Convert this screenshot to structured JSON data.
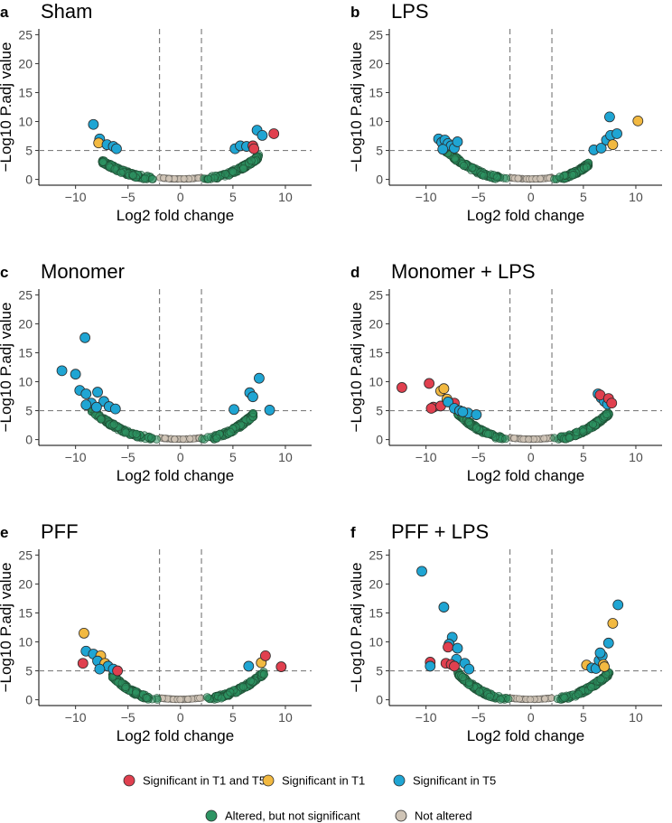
{
  "chart_data": {
    "type": "scatter",
    "xlabel": "Log2 fold change",
    "ylabel": "−Log10 P.adj value",
    "xlim": [
      -13.5,
      12.5
    ],
    "ylim": [
      -1,
      26
    ],
    "xticks": [
      -10,
      -5,
      0,
      5,
      10
    ],
    "xtick_labels": [
      "−10",
      "−5",
      "0",
      "5",
      "10"
    ],
    "yticks": [
      0,
      5,
      10,
      15,
      20,
      25
    ],
    "ytick_labels": [
      "0",
      "5",
      "10",
      "15",
      "20",
      "25"
    ],
    "thresholds": {
      "x": [
        -2,
        2
      ],
      "y": 5
    },
    "categories": {
      "t1t5": {
        "label": "Significant in T1 and T5",
        "color": "#e0404f"
      },
      "t1": {
        "label": "Significant in T1",
        "color": "#f2b941"
      },
      "t5": {
        "label": "Significant in T5",
        "color": "#1fa5d3"
      },
      "altered": {
        "label": "Altered, but not significant",
        "color": "#2e9463"
      },
      "not": {
        "label": "Not altered",
        "color": "#cfc4b6"
      }
    },
    "panels": [
      {
        "letter": "a",
        "title": "Sham",
        "left": {
          "xmin": -7.5,
          "xmax": -2,
          "ymax": 3
        },
        "right": {
          "xmin": 2,
          "xmax": 7.5,
          "ymax": 3.8
        },
        "sig": [
          {
            "x": -8.3,
            "y": 9.5,
            "c": "t5"
          },
          {
            "x": -7.7,
            "y": 7.0,
            "c": "t5"
          },
          {
            "x": -7.8,
            "y": 6.3,
            "c": "t1"
          },
          {
            "x": -7.0,
            "y": 6.0,
            "c": "t5"
          },
          {
            "x": -6.4,
            "y": 5.7,
            "c": "t5"
          },
          {
            "x": -6.1,
            "y": 5.3,
            "c": "t5"
          },
          {
            "x": 5.2,
            "y": 5.3,
            "c": "t5"
          },
          {
            "x": 5.7,
            "y": 5.8,
            "c": "t5"
          },
          {
            "x": 6.3,
            "y": 5.7,
            "c": "t5"
          },
          {
            "x": 6.9,
            "y": 5.8,
            "c": "t1t5"
          },
          {
            "x": 7.0,
            "y": 5.3,
            "c": "t1t5"
          },
          {
            "x": 7.3,
            "y": 8.5,
            "c": "t5"
          },
          {
            "x": 7.8,
            "y": 7.6,
            "c": "t5"
          },
          {
            "x": 8.9,
            "y": 7.9,
            "c": "t1t5"
          }
        ]
      },
      {
        "letter": "b",
        "title": "LPS",
        "left": {
          "xmin": -8.5,
          "xmax": -2,
          "ymax": 5.5
        },
        "right": {
          "xmin": 2,
          "xmax": 5.5,
          "ymax": 2.5
        },
        "sig": [
          {
            "x": -8.8,
            "y": 7.0,
            "c": "t5"
          },
          {
            "x": -8.5,
            "y": 6.4,
            "c": "t5"
          },
          {
            "x": -8.2,
            "y": 6.8,
            "c": "t5"
          },
          {
            "x": -7.9,
            "y": 6.2,
            "c": "t5"
          },
          {
            "x": -7.6,
            "y": 5.8,
            "c": "t5"
          },
          {
            "x": -7.3,
            "y": 5.4,
            "c": "t5"
          },
          {
            "x": -7.0,
            "y": 6.5,
            "c": "t5"
          },
          {
            "x": -8.4,
            "y": 5.2,
            "c": "t5"
          },
          {
            "x": 6.0,
            "y": 5.1,
            "c": "t5"
          },
          {
            "x": 6.7,
            "y": 5.4,
            "c": "t5"
          },
          {
            "x": 7.2,
            "y": 6.8,
            "c": "t5"
          },
          {
            "x": 7.6,
            "y": 7.6,
            "c": "t5"
          },
          {
            "x": 7.5,
            "y": 10.8,
            "c": "t5"
          },
          {
            "x": 8.2,
            "y": 7.9,
            "c": "t5"
          },
          {
            "x": 7.8,
            "y": 6.0,
            "c": "t1"
          },
          {
            "x": 10.2,
            "y": 10.1,
            "c": "t1"
          }
        ]
      },
      {
        "letter": "c",
        "title": "Monomer",
        "left": {
          "xmin": -8.5,
          "xmax": -2,
          "ymax": 5
        },
        "right": {
          "xmin": 2,
          "xmax": 7.0,
          "ymax": 4.2
        },
        "sig": [
          {
            "x": -11.3,
            "y": 11.9,
            "c": "t5"
          },
          {
            "x": -10.0,
            "y": 11.3,
            "c": "t5"
          },
          {
            "x": -9.1,
            "y": 17.6,
            "c": "t5"
          },
          {
            "x": -9.6,
            "y": 8.5,
            "c": "t5"
          },
          {
            "x": -9.0,
            "y": 7.9,
            "c": "t5"
          },
          {
            "x": -8.5,
            "y": 6.3,
            "c": "t5"
          },
          {
            "x": -9.0,
            "y": 6.0,
            "c": "t5"
          },
          {
            "x": -7.9,
            "y": 8.2,
            "c": "t5"
          },
          {
            "x": -7.3,
            "y": 6.6,
            "c": "t5"
          },
          {
            "x": -6.8,
            "y": 5.7,
            "c": "t5"
          },
          {
            "x": -6.2,
            "y": 5.3,
            "c": "t5"
          },
          {
            "x": -8.0,
            "y": 5.6,
            "c": "t5"
          },
          {
            "x": 5.1,
            "y": 5.2,
            "c": "t5"
          },
          {
            "x": 6.6,
            "y": 8.1,
            "c": "t5"
          },
          {
            "x": 6.9,
            "y": 7.4,
            "c": "t5"
          },
          {
            "x": 7.5,
            "y": 10.6,
            "c": "t5"
          },
          {
            "x": 8.5,
            "y": 5.1,
            "c": "t5"
          }
        ]
      },
      {
        "letter": "d",
        "title": "Monomer + LPS",
        "left": {
          "xmin": -7.0,
          "xmax": -2,
          "ymax": 4.5
        },
        "right": {
          "xmin": 2,
          "xmax": 7.5,
          "ymax": 4.5
        },
        "sig": [
          {
            "x": -12.3,
            "y": 9.0,
            "c": "t1t5"
          },
          {
            "x": -9.7,
            "y": 9.7,
            "c": "t1t5"
          },
          {
            "x": -9.3,
            "y": 5.6,
            "c": "t1t5"
          },
          {
            "x": -9.5,
            "y": 5.4,
            "c": "t1t5"
          },
          {
            "x": -8.6,
            "y": 8.4,
            "c": "t1"
          },
          {
            "x": -8.3,
            "y": 8.8,
            "c": "t1"
          },
          {
            "x": -8.0,
            "y": 7.0,
            "c": "t1"
          },
          {
            "x": -8.6,
            "y": 5.8,
            "c": "t1t5"
          },
          {
            "x": -7.3,
            "y": 6.3,
            "c": "t1t5"
          },
          {
            "x": -7.9,
            "y": 6.5,
            "c": "t5"
          },
          {
            "x": -7.3,
            "y": 5.4,
            "c": "t5"
          },
          {
            "x": -6.8,
            "y": 5.0,
            "c": "t5"
          },
          {
            "x": -6.0,
            "y": 4.6,
            "c": "t5"
          },
          {
            "x": -5.2,
            "y": 4.3,
            "c": "t5"
          },
          {
            "x": -6.5,
            "y": 4.8,
            "c": "t5"
          },
          {
            "x": 6.4,
            "y": 7.9,
            "c": "t5"
          },
          {
            "x": 6.7,
            "y": 7.2,
            "c": "t5"
          },
          {
            "x": 7.0,
            "y": 6.6,
            "c": "t5"
          },
          {
            "x": 7.3,
            "y": 6.1,
            "c": "t5"
          },
          {
            "x": 6.6,
            "y": 7.7,
            "c": "t1t5"
          },
          {
            "x": 7.4,
            "y": 7.1,
            "c": "t1t5"
          },
          {
            "x": 7.7,
            "y": 6.3,
            "c": "t1t5"
          }
        ]
      },
      {
        "letter": "e",
        "title": "PFF",
        "left": {
          "xmin": -6.5,
          "xmax": -2,
          "ymax": 4
        },
        "right": {
          "xmin": 2,
          "xmax": 8.0,
          "ymax": 4.5
        },
        "sig": [
          {
            "x": -9.2,
            "y": 11.5,
            "c": "t1"
          },
          {
            "x": -9.3,
            "y": 6.3,
            "c": "t1t5"
          },
          {
            "x": -9.0,
            "y": 8.4,
            "c": "t5"
          },
          {
            "x": -8.3,
            "y": 7.9,
            "c": "t5"
          },
          {
            "x": -7.6,
            "y": 7.6,
            "c": "t1"
          },
          {
            "x": -7.9,
            "y": 6.7,
            "c": "t5"
          },
          {
            "x": -7.2,
            "y": 6.3,
            "c": "t1"
          },
          {
            "x": -6.9,
            "y": 5.8,
            "c": "t5"
          },
          {
            "x": -7.7,
            "y": 5.3,
            "c": "t5"
          },
          {
            "x": -6.4,
            "y": 5.3,
            "c": "t5"
          },
          {
            "x": -6.0,
            "y": 5.0,
            "c": "t1t5"
          },
          {
            "x": 6.5,
            "y": 5.8,
            "c": "t5"
          },
          {
            "x": 7.7,
            "y": 6.4,
            "c": "t1"
          },
          {
            "x": 8.1,
            "y": 7.6,
            "c": "t1t5"
          },
          {
            "x": 9.6,
            "y": 5.7,
            "c": "t1t5"
          }
        ]
      },
      {
        "letter": "f",
        "title": "PFF + LPS",
        "left": {
          "xmin": -7.0,
          "xmax": -2,
          "ymax": 4.5
        },
        "right": {
          "xmin": 2,
          "xmax": 7.5,
          "ymax": 4.5
        },
        "sig": [
          {
            "x": -10.4,
            "y": 22.2,
            "c": "t5"
          },
          {
            "x": -8.3,
            "y": 16.0,
            "c": "t5"
          },
          {
            "x": -9.6,
            "y": 6.5,
            "c": "t1t5"
          },
          {
            "x": -9.6,
            "y": 5.8,
            "c": "t5"
          },
          {
            "x": -7.5,
            "y": 10.8,
            "c": "t5"
          },
          {
            "x": -7.8,
            "y": 9.6,
            "c": "t5"
          },
          {
            "x": -7.9,
            "y": 9.1,
            "c": "t1t5"
          },
          {
            "x": -7.0,
            "y": 8.9,
            "c": "t5"
          },
          {
            "x": -7.1,
            "y": 7.0,
            "c": "t5"
          },
          {
            "x": -6.3,
            "y": 6.3,
            "c": "t5"
          },
          {
            "x": -5.9,
            "y": 5.3,
            "c": "t5"
          },
          {
            "x": -8.1,
            "y": 6.3,
            "c": "t1t5"
          },
          {
            "x": -7.6,
            "y": 6.1,
            "c": "t1t5"
          },
          {
            "x": -7.3,
            "y": 5.8,
            "c": "t1t5"
          },
          {
            "x": 5.3,
            "y": 6.0,
            "c": "t1"
          },
          {
            "x": 5.8,
            "y": 5.5,
            "c": "t5"
          },
          {
            "x": 6.2,
            "y": 5.4,
            "c": "t5"
          },
          {
            "x": 6.5,
            "y": 6.8,
            "c": "t5"
          },
          {
            "x": 6.8,
            "y": 7.6,
            "c": "t5"
          },
          {
            "x": 6.6,
            "y": 8.1,
            "c": "t5"
          },
          {
            "x": 6.9,
            "y": 6.1,
            "c": "t1"
          },
          {
            "x": 7.0,
            "y": 5.7,
            "c": "t1"
          },
          {
            "x": 7.4,
            "y": 9.8,
            "c": "t5"
          },
          {
            "x": 7.8,
            "y": 13.2,
            "c": "t1"
          },
          {
            "x": 8.3,
            "y": 16.4,
            "c": "t5"
          }
        ]
      }
    ],
    "legend": {
      "placement": "bottom-center",
      "row1": [
        "t1t5",
        "t1",
        "t5"
      ],
      "row2": [
        "altered",
        "not"
      ]
    }
  }
}
